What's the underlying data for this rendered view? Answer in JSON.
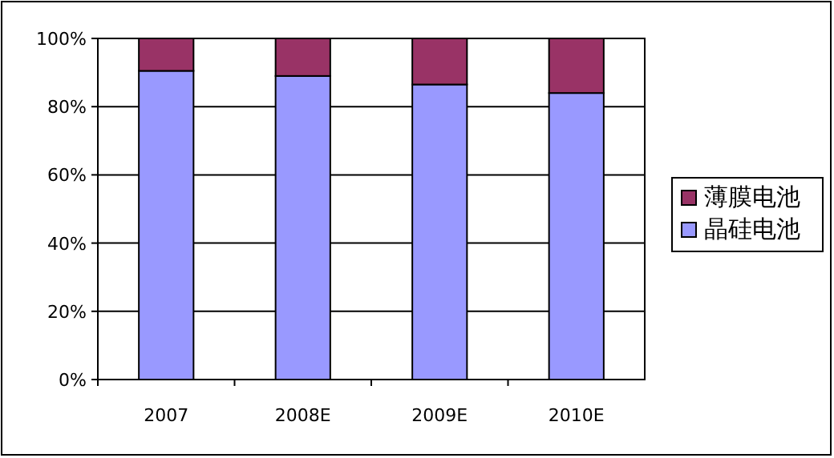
{
  "chart_data": {
    "type": "bar",
    "stacked": true,
    "categories": [
      "2007",
      "2008E",
      "2009E",
      "2010E"
    ],
    "series": [
      {
        "name": "晶硅电池",
        "color": "#9999ff",
        "values": [
          90.5,
          89,
          86.5,
          84
        ]
      },
      {
        "name": "薄膜电池",
        "color": "#993366",
        "values": [
          9.5,
          11,
          13.5,
          16
        ]
      }
    ],
    "ylim": [
      0,
      100
    ],
    "yticks": [
      {
        "value": 0,
        "label": "0%"
      },
      {
        "value": 20,
        "label": "20%"
      },
      {
        "value": 40,
        "label": "40%"
      },
      {
        "value": 60,
        "label": "60%"
      },
      {
        "value": 80,
        "label": "80%"
      },
      {
        "value": 100,
        "label": "100%"
      }
    ],
    "grid": "y",
    "legend": "right"
  }
}
